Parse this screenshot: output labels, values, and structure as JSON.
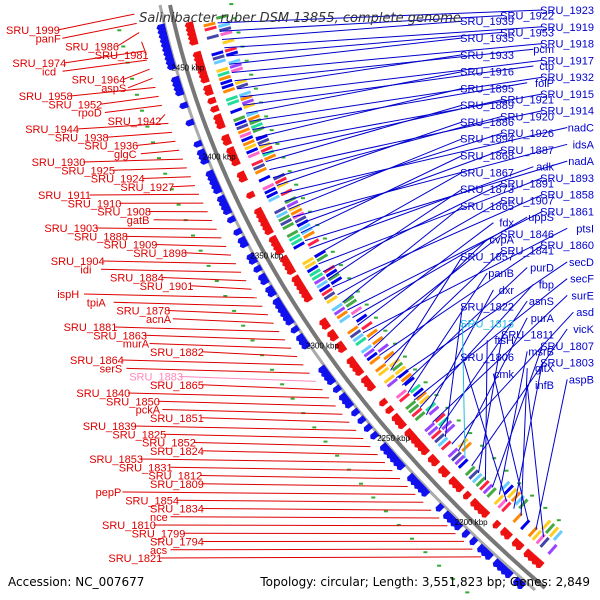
{
  "title": "Salinibacter ruber DSM 13855, complete genome",
  "accession": "Accession: NC_007677",
  "summary": "Topology: circular; Length: 3,551,823 bp; Genes: 2,849",
  "colors": {
    "left_label": "#dd0000",
    "right_label": "#0000cc",
    "highlight_left": "#ff88bb",
    "highlight_right": "#22bbdd",
    "backbone": "#888888",
    "tick": "#33aa33"
  },
  "kbp_marks": [
    "2450 kbp",
    "2400 kbp",
    "2350 kbp",
    "2300 kbp",
    "2250 kbp",
    "2200 kbp"
  ],
  "left_labels": [
    {
      "text": "SRU_1999",
      "c": "n"
    },
    {
      "text": "panF",
      "c": "n"
    },
    {
      "text": "SRU_1986",
      "c": "n"
    },
    {
      "text": "SRU_1981",
      "c": "n"
    },
    {
      "text": "SRU_1974",
      "c": "n"
    },
    {
      "text": "icd",
      "c": "n"
    },
    {
      "text": "SRU_1964",
      "c": "n"
    },
    {
      "text": "aspS",
      "c": "n"
    },
    {
      "text": "SRU_1958",
      "c": "n"
    },
    {
      "text": "SRU_1952",
      "c": "n"
    },
    {
      "text": "rpoD",
      "c": "n"
    },
    {
      "text": "SRU_1942",
      "c": "n"
    },
    {
      "text": "SRU_1944",
      "c": "n"
    },
    {
      "text": "SRU_1938",
      "c": "n"
    },
    {
      "text": "SRU_1936",
      "c": "n"
    },
    {
      "text": "glgC",
      "c": "n"
    },
    {
      "text": "SRU_1930",
      "c": "n"
    },
    {
      "text": "SRU_1925",
      "c": "n"
    },
    {
      "text": "SRU_1924",
      "c": "n"
    },
    {
      "text": "SRU_1927",
      "c": "n"
    },
    {
      "text": "SRU_1911",
      "c": "n"
    },
    {
      "text": "SRU_1910",
      "c": "n"
    },
    {
      "text": "SRU_1908",
      "c": "n"
    },
    {
      "text": "gatB",
      "c": "n"
    },
    {
      "text": "SRU_1903",
      "c": "n"
    },
    {
      "text": "SRU_1888",
      "c": "n"
    },
    {
      "text": "SRU_1909",
      "c": "n"
    },
    {
      "text": "SRU_1898",
      "c": "n"
    },
    {
      "text": "SRU_1904",
      "c": "n"
    },
    {
      "text": "idi",
      "c": "n"
    },
    {
      "text": "SRU_1884",
      "c": "n"
    },
    {
      "text": "SRU_1901",
      "c": "n"
    },
    {
      "text": "ispH",
      "c": "n"
    },
    {
      "text": "tpiA",
      "c": "n"
    },
    {
      "text": "SRU_1878",
      "c": "n"
    },
    {
      "text": "acnA",
      "c": "n"
    },
    {
      "text": "SRU_1881",
      "c": "n"
    },
    {
      "text": "SRU_1863",
      "c": "n"
    },
    {
      "text": "murA",
      "c": "n"
    },
    {
      "text": "SRU_1882",
      "c": "n"
    },
    {
      "text": "SRU_1864",
      "c": "n"
    },
    {
      "text": "serS",
      "c": "n"
    },
    {
      "text": "SRU_1883",
      "c": "h"
    },
    {
      "text": "SRU_1865",
      "c": "n"
    },
    {
      "text": "SRU_1840",
      "c": "n"
    },
    {
      "text": "SRU_1850",
      "c": "n"
    },
    {
      "text": "pckA",
      "c": "n"
    },
    {
      "text": "SRU_1851",
      "c": "n"
    },
    {
      "text": "SRU_1839",
      "c": "n"
    },
    {
      "text": "SRU_1825",
      "c": "n"
    },
    {
      "text": "SRU_1852",
      "c": "n"
    },
    {
      "text": "SRU_1824",
      "c": "n"
    },
    {
      "text": "SRU_1853",
      "c": "n"
    },
    {
      "text": "SRU_1831",
      "c": "n"
    },
    {
      "text": "SRU_1812",
      "c": "n"
    },
    {
      "text": "SRU_1809",
      "c": "n"
    },
    {
      "text": "pepP",
      "c": "n"
    },
    {
      "text": "SRU_1854",
      "c": "n"
    },
    {
      "text": "SRU_1834",
      "c": "n"
    },
    {
      "text": "nce",
      "c": "n"
    },
    {
      "text": "SRU_1810",
      "c": "n"
    },
    {
      "text": "SRU_1799",
      "c": "n"
    },
    {
      "text": "SRU_1794",
      "c": "n"
    },
    {
      "text": "acs",
      "c": "n"
    },
    {
      "text": "SRU_1821",
      "c": "n"
    }
  ],
  "right_labels": [
    {
      "text": "SRU_1923",
      "c": "n"
    },
    {
      "text": "SRU_1922",
      "c": "n"
    },
    {
      "text": "SRU_1939",
      "c": "n"
    },
    {
      "text": "SRU_1919",
      "c": "n"
    },
    {
      "text": "SRU_1953",
      "c": "n"
    },
    {
      "text": "SRU_1935",
      "c": "n"
    },
    {
      "text": "SRU_1918",
      "c": "n"
    },
    {
      "text": "pcm",
      "c": "n"
    },
    {
      "text": "SRU_1933",
      "c": "n"
    },
    {
      "text": "SRU_1917",
      "c": "n"
    },
    {
      "text": "ctp",
      "c": "n"
    },
    {
      "text": "SRU_1916",
      "c": "n"
    },
    {
      "text": "SRU_1932",
      "c": "n"
    },
    {
      "text": "folP",
      "c": "n"
    },
    {
      "text": "SRU_1895",
      "c": "n"
    },
    {
      "text": "SRU_1915",
      "c": "n"
    },
    {
      "text": "SRU_1921",
      "c": "n"
    },
    {
      "text": "SRU_1889",
      "c": "n"
    },
    {
      "text": "SRU_1914",
      "c": "n"
    },
    {
      "text": "SRU_1920",
      "c": "n"
    },
    {
      "text": "SRU_1886",
      "c": "n"
    },
    {
      "text": "nadC",
      "c": "n"
    },
    {
      "text": "SRU_1926",
      "c": "n"
    },
    {
      "text": "SRU_1894",
      "c": "n"
    },
    {
      "text": "idsA",
      "c": "n"
    },
    {
      "text": "SRU_1887",
      "c": "n"
    },
    {
      "text": "SRU_1868",
      "c": "n"
    },
    {
      "text": "nadA",
      "c": "n"
    },
    {
      "text": "adk",
      "c": "n"
    },
    {
      "text": "SRU_1867",
      "c": "n"
    },
    {
      "text": "SRU_1893",
      "c": "n"
    },
    {
      "text": "SRU_1891",
      "c": "n"
    },
    {
      "text": "SRU_1873",
      "c": "n"
    },
    {
      "text": "SRU_1858",
      "c": "n"
    },
    {
      "text": "SRU_1907",
      "c": "n"
    },
    {
      "text": "SRU_1865",
      "c": "n"
    },
    {
      "text": "SRU_1861",
      "c": "n"
    },
    {
      "text": "uppS",
      "c": "n"
    },
    {
      "text": "fdx",
      "c": "n"
    },
    {
      "text": "ptsI",
      "c": "n"
    },
    {
      "text": "SRU_1846",
      "c": "n"
    },
    {
      "text": "cvpA",
      "c": "n"
    },
    {
      "text": "SRU_1860",
      "c": "n"
    },
    {
      "text": "SRU_1841",
      "c": "n"
    },
    {
      "text": "SRU_1857",
      "c": "n"
    },
    {
      "text": "secD",
      "c": "n"
    },
    {
      "text": "purD",
      "c": "n"
    },
    {
      "text": "panB",
      "c": "n"
    },
    {
      "text": "secF",
      "c": "n"
    },
    {
      "text": "fbp",
      "c": "n"
    },
    {
      "text": "dxr",
      "c": "n"
    },
    {
      "text": "surE",
      "c": "n"
    },
    {
      "text": "asnS",
      "c": "n"
    },
    {
      "text": "SRU_1822",
      "c": "n"
    },
    {
      "text": "asd",
      "c": "n"
    },
    {
      "text": "purA",
      "c": "n"
    },
    {
      "text": "SRU_1813",
      "c": "h"
    },
    {
      "text": "vicK",
      "c": "n"
    },
    {
      "text": "SRU_1811",
      "c": "n"
    },
    {
      "text": "ftsH",
      "c": "n"
    },
    {
      "text": "SRU_1807",
      "c": "n"
    },
    {
      "text": "msrB",
      "c": "n"
    },
    {
      "text": "SRU_1806",
      "c": "n"
    },
    {
      "text": "SRU_1803",
      "c": "n"
    },
    {
      "text": "gltX",
      "c": "n"
    },
    {
      "text": "cmk",
      "c": "n"
    },
    {
      "text": "aspB",
      "c": "n"
    },
    {
      "text": "infB",
      "c": "n"
    }
  ]
}
